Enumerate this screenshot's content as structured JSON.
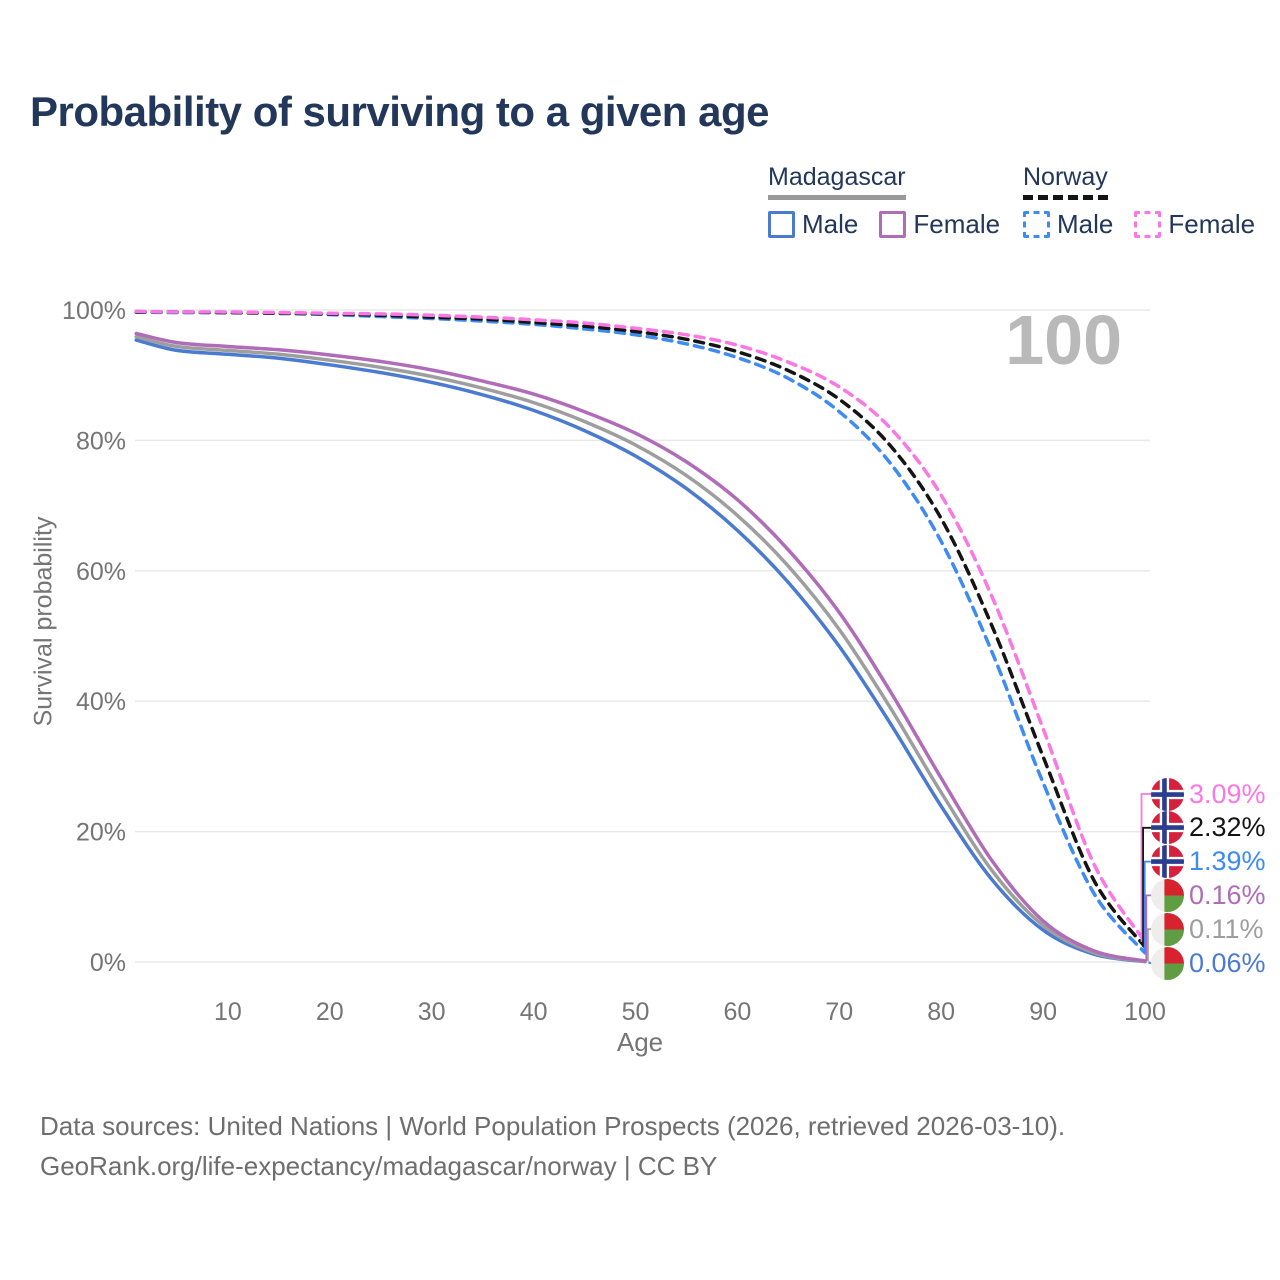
{
  "title": "Probability of surviving to a given age",
  "watermark_age": "100",
  "legend": {
    "groups": [
      {
        "name": "Madagascar",
        "line_style": "solid",
        "line_color": "#999999",
        "items": [
          {
            "label": "Male",
            "color": "#4a7bd0",
            "style": "solid"
          },
          {
            "label": "Female",
            "color": "#b06cb8",
            "style": "solid"
          }
        ]
      },
      {
        "name": "Norway",
        "line_style": "dashed",
        "line_color": "#141414",
        "items": [
          {
            "label": "Male",
            "color": "#3e8bf2",
            "style": "dashed"
          },
          {
            "label": "Female",
            "color": "#fb77e3",
            "style": "dashed"
          }
        ]
      }
    ]
  },
  "chart_data": {
    "type": "line",
    "title": "Probability of surviving to a given age",
    "xlabel": "Age",
    "ylabel": "Survival probability",
    "xlim": [
      0,
      100
    ],
    "ylim": [
      0,
      100
    ],
    "x_ticks": [
      10,
      20,
      30,
      40,
      50,
      60,
      70,
      80,
      90,
      100
    ],
    "y_tick_values": [
      0,
      20,
      40,
      60,
      80,
      100
    ],
    "y_tick_labels": [
      "0%",
      "20%",
      "40%",
      "60%",
      "80%",
      "100%"
    ],
    "grid": "horizontal",
    "legend_position": "top-right",
    "ages": [
      1,
      5,
      10,
      15,
      20,
      25,
      30,
      35,
      40,
      45,
      50,
      55,
      60,
      65,
      70,
      75,
      80,
      85,
      90,
      95,
      100
    ],
    "series": [
      {
        "name": "Madagascar Male",
        "country": "Madagascar",
        "sex": "Male",
        "style": "solid",
        "color": "#4a7bd0",
        "flag": "madagascar",
        "end_value": 0.06,
        "end_label": "0.06%",
        "values": [
          95.4,
          93.8,
          93.2,
          92.6,
          91.6,
          90.4,
          88.9,
          87.0,
          84.6,
          81.5,
          77.6,
          72.6,
          66.2,
          58.2,
          48.4,
          36.6,
          23.9,
          12.6,
          4.9,
          1.2,
          0.06
        ]
      },
      {
        "name": "Madagascar Both sexes",
        "country": "Madagascar",
        "sex": "Both sexes",
        "style": "solid",
        "color": "#9e9e9e",
        "flag": "madagascar",
        "end_value": 0.11,
        "end_label": "0.11%",
        "values": [
          95.9,
          94.4,
          93.8,
          93.2,
          92.3,
          91.2,
          89.8,
          88.0,
          85.8,
          82.9,
          79.3,
          74.6,
          68.5,
          60.7,
          51.0,
          39.0,
          26.0,
          14.0,
          5.6,
          1.4,
          0.11
        ]
      },
      {
        "name": "Madagascar Female",
        "country": "Madagascar",
        "sex": "Female",
        "style": "solid",
        "color": "#b06cb8",
        "flag": "madagascar",
        "end_value": 0.16,
        "end_label": "0.16%",
        "values": [
          96.4,
          95.0,
          94.4,
          93.9,
          93.1,
          92.1,
          90.8,
          89.1,
          87.1,
          84.4,
          81.1,
          76.7,
          70.9,
          63.2,
          53.6,
          41.5,
          28.2,
          15.5,
          6.3,
          1.7,
          0.16
        ]
      },
      {
        "name": "Norway Male",
        "country": "Norway",
        "sex": "Male",
        "style": "dashed",
        "color": "#3e8bf2",
        "flag": "norway",
        "end_value": 1.39,
        "end_label": "1.39%",
        "values": [
          99.7,
          99.6,
          99.6,
          99.5,
          99.3,
          99.0,
          98.7,
          98.3,
          97.8,
          97.1,
          96.2,
          94.8,
          92.7,
          89.5,
          84.4,
          76.5,
          64.5,
          47.5,
          27.5,
          10.5,
          1.39
        ]
      },
      {
        "name": "Norway Both sexes",
        "country": "Norway",
        "sex": "Both sexes",
        "style": "dashed",
        "color": "#141414",
        "flag": "norway",
        "end_value": 2.32,
        "end_label": "2.32%",
        "values": [
          99.7,
          99.7,
          99.6,
          99.5,
          99.4,
          99.2,
          98.9,
          98.6,
          98.1,
          97.5,
          96.7,
          95.5,
          93.6,
          90.7,
          86.3,
          79.2,
          68.0,
          51.5,
          31.5,
          12.5,
          2.32
        ]
      },
      {
        "name": "Norway Female",
        "country": "Norway",
        "sex": "Female",
        "style": "dashed",
        "color": "#fb77e3",
        "flag": "norway",
        "end_value": 3.09,
        "end_label": "3.09%",
        "values": [
          99.8,
          99.7,
          99.7,
          99.6,
          99.5,
          99.4,
          99.2,
          98.9,
          98.5,
          98.0,
          97.2,
          96.2,
          94.6,
          92.0,
          88.2,
          81.9,
          71.6,
          56.0,
          35.8,
          15.0,
          3.09
        ]
      }
    ]
  },
  "colors": {
    "title_text": "#22375a",
    "axis_text": "#757575",
    "gridline": "#e9e9e9",
    "watermark": "#b9b9b9",
    "footer_text": "#6e6e6e",
    "norway_flag_red": "#d5213d",
    "norway_flag_blue": "#2b3d8f",
    "madagascar_flag_red": "#d6232e",
    "madagascar_flag_green": "#5f9c42"
  },
  "footer": {
    "line1": "Data sources: United Nations | World Population Prospects (2026, retrieved 2026-03-10).",
    "line2": "GeoRank.org/life-expectancy/madagascar/norway | CC BY"
  }
}
